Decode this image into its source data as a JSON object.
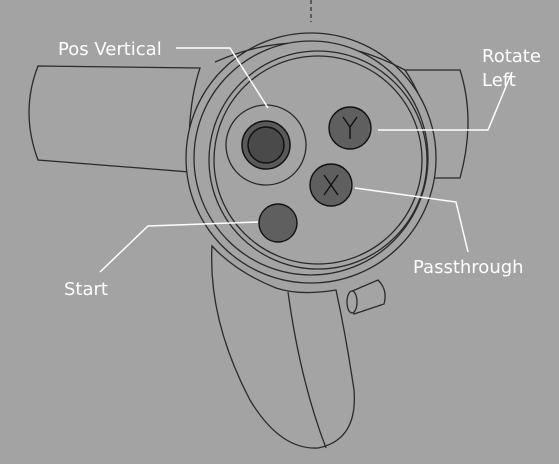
{
  "labels": {
    "pos_vertical": "Pos Vertical",
    "rotate_left_line1": "Rotate",
    "rotate_left_line2": "Left",
    "passthrough": "Passthrough",
    "start": "Start"
  },
  "buttons": {
    "y": "Y",
    "x": "X"
  },
  "colors": {
    "background": "#a3a3a3",
    "button_fill": "#5f5f5f",
    "thumbstick_fill": "#4a4a4a",
    "leader_line": "#ffffff",
    "outline": "#2a2a2a"
  }
}
